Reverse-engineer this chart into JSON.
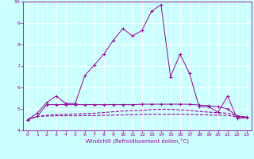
{
  "x": [
    0,
    1,
    2,
    3,
    4,
    5,
    6,
    7,
    8,
    9,
    10,
    11,
    12,
    13,
    14,
    15,
    16,
    17,
    18,
    19,
    20,
    21,
    22,
    23
  ],
  "line1": [
    4.5,
    4.8,
    5.3,
    5.6,
    5.25,
    5.25,
    6.55,
    7.05,
    7.55,
    8.2,
    8.75,
    8.4,
    8.65,
    9.55,
    9.85,
    6.5,
    7.55,
    6.65,
    5.1,
    5.1,
    4.85,
    5.6,
    4.55,
    4.6
  ],
  "line2": [
    4.5,
    4.65,
    4.67,
    4.68,
    4.68,
    4.68,
    4.69,
    4.69,
    4.7,
    4.71,
    4.72,
    4.73,
    4.74,
    4.75,
    4.75,
    4.75,
    4.75,
    4.74,
    4.73,
    4.72,
    4.71,
    4.7,
    4.62,
    4.6
  ],
  "line3": [
    4.5,
    4.65,
    4.7,
    4.73,
    4.75,
    4.76,
    4.78,
    4.8,
    4.83,
    4.87,
    4.9,
    4.92,
    4.94,
    4.97,
    4.98,
    4.98,
    4.96,
    4.93,
    4.88,
    4.85,
    4.82,
    4.8,
    4.68,
    4.62
  ],
  "line4": [
    4.5,
    4.65,
    5.2,
    5.2,
    5.2,
    5.2,
    5.2,
    5.2,
    5.2,
    5.2,
    5.2,
    5.2,
    5.22,
    5.22,
    5.22,
    5.22,
    5.22,
    5.22,
    5.18,
    5.15,
    5.1,
    5.0,
    4.65,
    4.62
  ],
  "color": "#990099",
  "bgcolor": "#ccffff",
  "grid_color": "#aadddd",
  "xlabel": "Windchill (Refroidissement éolien,°C)",
  "ylim": [
    4,
    10
  ],
  "xlim": [
    -0.5,
    23.5
  ],
  "yticks": [
    4,
    5,
    6,
    7,
    8,
    9,
    10
  ],
  "xticks": [
    0,
    1,
    2,
    3,
    4,
    5,
    6,
    7,
    8,
    9,
    10,
    11,
    12,
    13,
    14,
    15,
    16,
    17,
    18,
    19,
    20,
    21,
    22,
    23
  ]
}
